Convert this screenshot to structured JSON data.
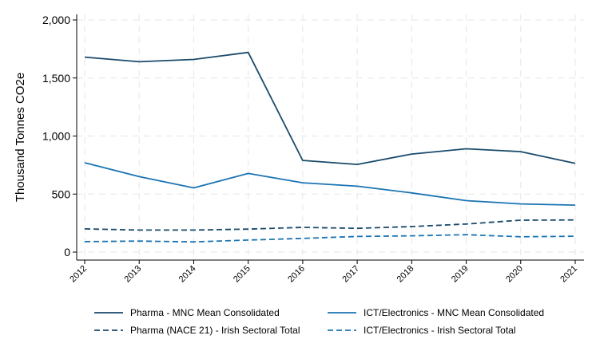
{
  "chart_data": {
    "type": "line",
    "title": "",
    "xlabel": "",
    "ylabel": "Thousand Tonnes CO2e",
    "x": [
      "2012",
      "2013",
      "2014",
      "2015",
      "2016",
      "2017",
      "2018",
      "2019",
      "2020",
      "2021"
    ],
    "ylim": [
      0,
      2050
    ],
    "yticks": [
      0,
      500,
      1000,
      1500,
      2000
    ],
    "ytick_labels": [
      "0",
      "500",
      "1,000",
      "1,500",
      "2,000"
    ],
    "grid": true,
    "legend_position": "bottom",
    "series": [
      {
        "name": "Pharma - MNC Mean Consolidated",
        "style": "solid",
        "color": "#1a4a6b",
        "values": [
          1680,
          1640,
          1660,
          1720,
          790,
          755,
          845,
          890,
          865,
          765
        ]
      },
      {
        "name": "ICT/Electronics - MNC Mean Consolidated",
        "style": "solid",
        "color": "#1a74b3",
        "values": [
          770,
          650,
          553,
          678,
          597,
          568,
          510,
          443,
          415,
          405
        ]
      },
      {
        "name": "Pharma (NACE 21) - Irish Sectoral Total",
        "style": "dashed",
        "color": "#1a4a6b",
        "values": [
          200,
          190,
          190,
          198,
          213,
          205,
          220,
          242,
          275,
          277
        ]
      },
      {
        "name": "ICT/Electronics - Irish Sectoral Total",
        "style": "dashed",
        "color": "#1a74b3",
        "values": [
          90,
          95,
          88,
          104,
          118,
          135,
          140,
          150,
          132,
          137
        ]
      }
    ]
  }
}
